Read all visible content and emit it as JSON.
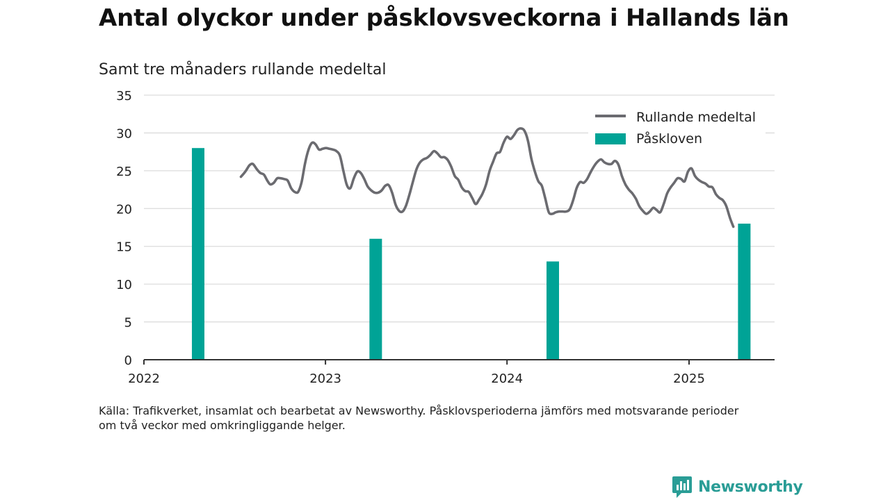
{
  "title": "Antal olyckor under påsklovsveckorna i Hallands län",
  "subtitle": "Samt tre månaders rullande medeltal",
  "source_line1": "Källa: Trafikverket, insamlat och bearbetat av Newsworthy. Påsklovsperioderna jämförs med motsvarande perioder",
  "source_line2": "om två veckor med omkringliggande helger.",
  "brand": {
    "name": "Newsworthy",
    "icon": "newsworthy-logo-icon",
    "color": "#2a9d96"
  },
  "chart_data": {
    "type": "line+bar",
    "x_axis": {
      "type": "time",
      "range": [
        "2022-01-01",
        "2025-06-01"
      ],
      "ticks": [
        "2022",
        "2023",
        "2024",
        "2025"
      ]
    },
    "y_axis": {
      "range": [
        0,
        35
      ],
      "ticks": [
        "0",
        "5",
        "10",
        "15",
        "20",
        "25",
        "30",
        "35"
      ],
      "grid": true
    },
    "legend": {
      "position": "top-right",
      "entries": [
        "Rullande medeltal",
        "Påskloven"
      ]
    },
    "series": [
      {
        "name": "Rullande medeltal",
        "kind": "line",
        "color": "#6b6b70",
        "points": [
          [
            "2022-07-15",
            24.2
          ],
          [
            "2022-07-24",
            24.9
          ],
          [
            "2022-08-01",
            25.7
          ],
          [
            "2022-08-08",
            25.9
          ],
          [
            "2022-08-16",
            25.2
          ],
          [
            "2022-08-23",
            24.7
          ],
          [
            "2022-08-30",
            24.5
          ],
          [
            "2022-09-06",
            23.7
          ],
          [
            "2022-09-12",
            23.2
          ],
          [
            "2022-09-19",
            23.4
          ],
          [
            "2022-09-26",
            24.0
          ],
          [
            "2022-10-03",
            24.0
          ],
          [
            "2022-10-10",
            23.9
          ],
          [
            "2022-10-17",
            23.7
          ],
          [
            "2022-10-24",
            22.7
          ],
          [
            "2022-10-31",
            22.2
          ],
          [
            "2022-11-07",
            22.2
          ],
          [
            "2022-11-14",
            23.5
          ],
          [
            "2022-11-21",
            26.0
          ],
          [
            "2022-11-28",
            27.8
          ],
          [
            "2022-12-05",
            28.7
          ],
          [
            "2022-12-12",
            28.5
          ],
          [
            "2022-12-19",
            27.8
          ],
          [
            "2022-12-26",
            27.9
          ],
          [
            "2023-01-02",
            28.0
          ],
          [
            "2023-01-09",
            27.9
          ],
          [
            "2023-01-16",
            27.8
          ],
          [
            "2023-01-23",
            27.6
          ],
          [
            "2023-01-30",
            27.0
          ],
          [
            "2023-02-06",
            25.0
          ],
          [
            "2023-02-13",
            23.1
          ],
          [
            "2023-02-20",
            22.7
          ],
          [
            "2023-02-27",
            24.0
          ],
          [
            "2023-03-06",
            24.9
          ],
          [
            "2023-03-13",
            24.7
          ],
          [
            "2023-03-20",
            23.9
          ],
          [
            "2023-03-27",
            22.9
          ],
          [
            "2023-04-03",
            22.4
          ],
          [
            "2023-04-10",
            22.1
          ],
          [
            "2023-04-17",
            22.1
          ],
          [
            "2023-04-24",
            22.4
          ],
          [
            "2023-05-01",
            23.0
          ],
          [
            "2023-05-08",
            23.1
          ],
          [
            "2023-05-15",
            22.1
          ],
          [
            "2023-05-22",
            20.5
          ],
          [
            "2023-05-29",
            19.7
          ],
          [
            "2023-06-05",
            19.6
          ],
          [
            "2023-06-12",
            20.4
          ],
          [
            "2023-06-19",
            21.9
          ],
          [
            "2023-06-26",
            23.6
          ],
          [
            "2023-07-03",
            25.2
          ],
          [
            "2023-07-10",
            26.1
          ],
          [
            "2023-07-17",
            26.5
          ],
          [
            "2023-07-24",
            26.7
          ],
          [
            "2023-07-31",
            27.1
          ],
          [
            "2023-08-07",
            27.6
          ],
          [
            "2023-08-14",
            27.3
          ],
          [
            "2023-08-21",
            26.8
          ],
          [
            "2023-08-28",
            26.8
          ],
          [
            "2023-09-04",
            26.4
          ],
          [
            "2023-09-11",
            25.5
          ],
          [
            "2023-09-18",
            24.3
          ],
          [
            "2023-09-25",
            23.8
          ],
          [
            "2023-10-02",
            22.8
          ],
          [
            "2023-10-09",
            22.3
          ],
          [
            "2023-10-16",
            22.2
          ],
          [
            "2023-10-23",
            21.4
          ],
          [
            "2023-10-30",
            20.6
          ],
          [
            "2023-11-06",
            21.2
          ],
          [
            "2023-11-13",
            22.0
          ],
          [
            "2023-11-20",
            23.2
          ],
          [
            "2023-11-27",
            25.0
          ],
          [
            "2023-12-04",
            26.2
          ],
          [
            "2023-12-11",
            27.3
          ],
          [
            "2023-12-18",
            27.5
          ],
          [
            "2023-12-25",
            28.7
          ],
          [
            "2024-01-01",
            29.5
          ],
          [
            "2024-01-08",
            29.2
          ],
          [
            "2024-01-15",
            29.7
          ],
          [
            "2024-01-22",
            30.4
          ],
          [
            "2024-01-29",
            30.6
          ],
          [
            "2024-02-05",
            30.3
          ],
          [
            "2024-02-12",
            29.0
          ],
          [
            "2024-02-19",
            26.6
          ],
          [
            "2024-02-26",
            24.9
          ],
          [
            "2024-03-04",
            23.6
          ],
          [
            "2024-03-11",
            23.0
          ],
          [
            "2024-03-18",
            21.3
          ],
          [
            "2024-03-25",
            19.5
          ],
          [
            "2024-04-01",
            19.3
          ],
          [
            "2024-04-08",
            19.5
          ],
          [
            "2024-04-15",
            19.6
          ],
          [
            "2024-04-22",
            19.6
          ],
          [
            "2024-04-29",
            19.6
          ],
          [
            "2024-05-06",
            19.9
          ],
          [
            "2024-05-13",
            21.1
          ],
          [
            "2024-05-20",
            22.7
          ],
          [
            "2024-05-27",
            23.5
          ],
          [
            "2024-06-03",
            23.4
          ],
          [
            "2024-06-10",
            23.9
          ],
          [
            "2024-06-17",
            24.8
          ],
          [
            "2024-06-24",
            25.6
          ],
          [
            "2024-07-01",
            26.2
          ],
          [
            "2024-07-08",
            26.5
          ],
          [
            "2024-07-15",
            26.1
          ],
          [
            "2024-07-22",
            25.9
          ],
          [
            "2024-07-29",
            25.9
          ],
          [
            "2024-08-05",
            26.3
          ],
          [
            "2024-08-12",
            25.8
          ],
          [
            "2024-08-19",
            24.3
          ],
          [
            "2024-08-26",
            23.2
          ],
          [
            "2024-09-02",
            22.5
          ],
          [
            "2024-09-09",
            22.0
          ],
          [
            "2024-09-16",
            21.3
          ],
          [
            "2024-09-23",
            20.3
          ],
          [
            "2024-09-30",
            19.7
          ],
          [
            "2024-10-07",
            19.3
          ],
          [
            "2024-10-14",
            19.6
          ],
          [
            "2024-10-21",
            20.1
          ],
          [
            "2024-10-28",
            19.8
          ],
          [
            "2024-11-04",
            19.5
          ],
          [
            "2024-11-11",
            20.6
          ],
          [
            "2024-11-18",
            22.0
          ],
          [
            "2024-11-25",
            22.8
          ],
          [
            "2024-12-02",
            23.4
          ],
          [
            "2024-12-09",
            24.0
          ],
          [
            "2024-12-16",
            23.9
          ],
          [
            "2024-12-23",
            23.6
          ],
          [
            "2024-12-30",
            24.9
          ],
          [
            "2025-01-06",
            25.3
          ],
          [
            "2025-01-13",
            24.3
          ],
          [
            "2025-01-20",
            23.8
          ],
          [
            "2025-01-27",
            23.5
          ],
          [
            "2025-02-03",
            23.3
          ],
          [
            "2025-02-10",
            22.9
          ],
          [
            "2025-02-17",
            22.8
          ],
          [
            "2025-02-24",
            21.9
          ],
          [
            "2025-03-03",
            21.4
          ],
          [
            "2025-03-10",
            21.1
          ],
          [
            "2025-03-17",
            20.3
          ],
          [
            "2025-03-24",
            18.8
          ],
          [
            "2025-03-31",
            17.6
          ]
        ]
      },
      {
        "name": "Påskloven",
        "kind": "bar",
        "color": "#00a396",
        "points": [
          [
            "2022-04-20",
            28
          ],
          [
            "2023-04-12",
            16
          ],
          [
            "2024-04-02",
            13
          ],
          [
            "2025-04-22",
            18
          ]
        ]
      }
    ]
  }
}
